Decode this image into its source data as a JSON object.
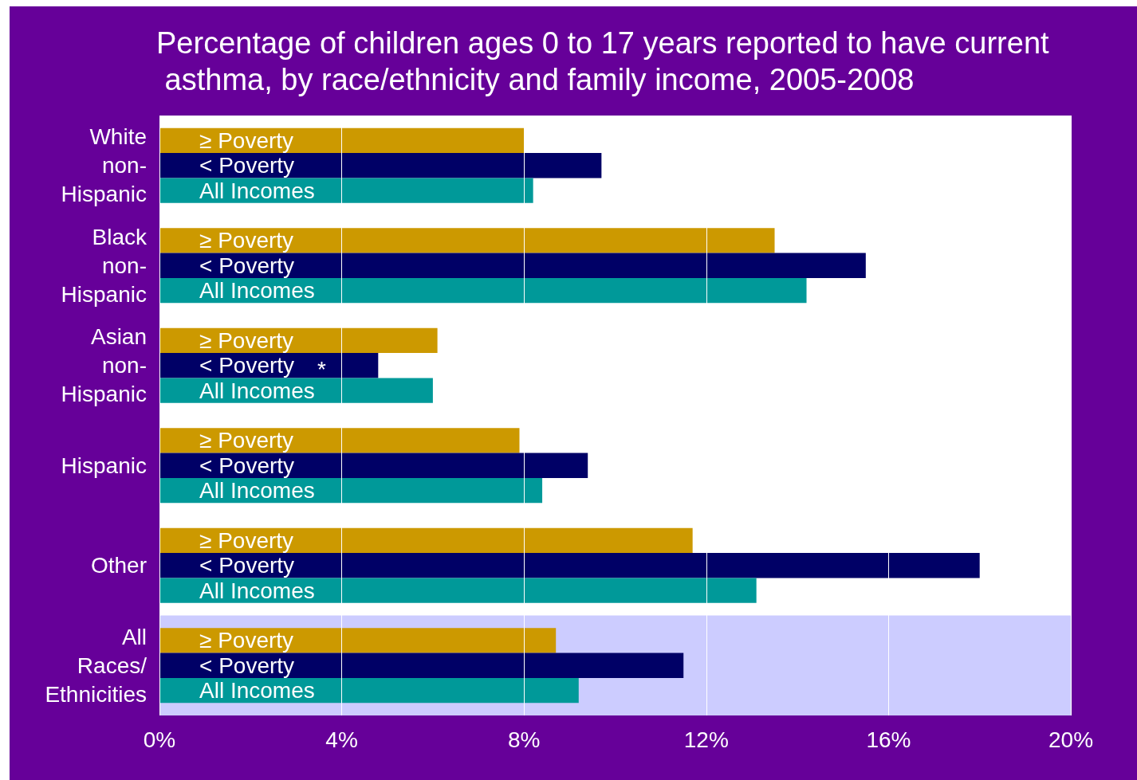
{
  "chart_data": {
    "type": "bar",
    "orientation": "horizontal",
    "title": "Percentage of children ages 0 to 17 years reported to have current asthma, by race/ethnicity and family income, 2005-2008",
    "categories": [
      "White non-Hispanic",
      "Black non-Hispanic",
      "Asian non-Hispanic",
      "Hispanic",
      "Other",
      "All Races/ Ethnicities"
    ],
    "series": [
      {
        "name": "≥ Poverty",
        "color": "#cc9900",
        "values": [
          8.0,
          13.5,
          6.1,
          7.9,
          11.7,
          8.7
        ]
      },
      {
        "name": "< Poverty",
        "color": "#000066",
        "values": [
          9.7,
          15.5,
          4.8,
          9.4,
          18.0,
          11.5
        ]
      },
      {
        "name": "All Incomes",
        "color": "#009999",
        "values": [
          8.2,
          14.2,
          6.0,
          8.4,
          13.1,
          9.2
        ]
      }
    ],
    "xlim": [
      0,
      20
    ],
    "xticks": [
      {
        "value": 0,
        "label": "0%"
      },
      {
        "value": 4,
        "label": "4%"
      },
      {
        "value": 8,
        "label": "8%"
      },
      {
        "value": 12,
        "label": "12%"
      },
      {
        "value": 16,
        "label": "16%"
      },
      {
        "value": 20,
        "label": "20%"
      }
    ],
    "annotations": [
      "*"
    ],
    "bands": [
      {
        "axis": "y",
        "from": "All Races/ Ethnicities",
        "to": "All Races/ Ethnicities",
        "color": "#ccccff"
      }
    ],
    "grid": "x",
    "legend": false
  }
}
